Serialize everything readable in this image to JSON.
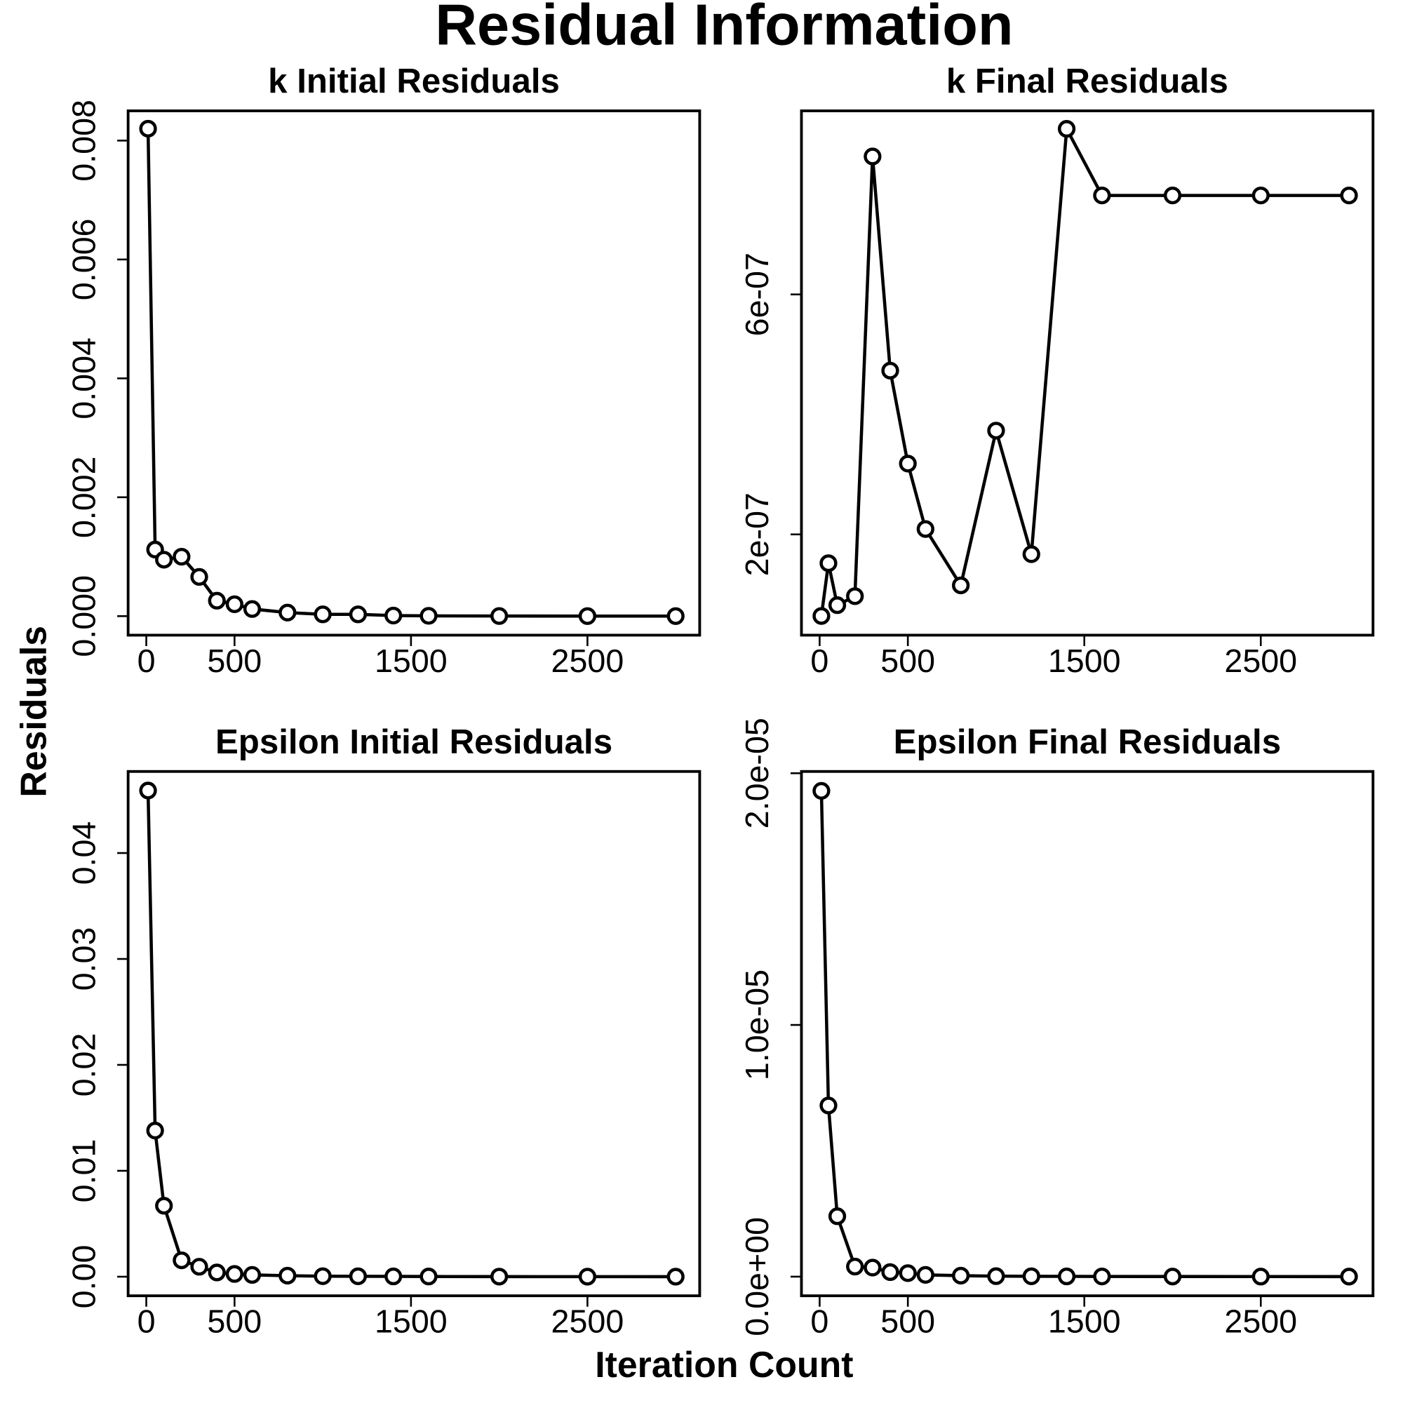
{
  "title": "Residual Information",
  "x_label": "Iteration Count",
  "y_label": "Residuals",
  "chart_data": [
    {
      "type": "line",
      "title": "k Initial Residuals",
      "color": "#000000",
      "marker": "circle",
      "x": [
        10,
        50,
        100,
        200,
        300,
        400,
        500,
        600,
        800,
        1000,
        1200,
        1400,
        1600,
        2000,
        2500,
        3000
      ],
      "values": [
        0.0082,
        0.00112,
        0.00095,
        0.001,
        0.00066,
        0.00026,
        0.0002,
        0.00012,
        6e-05,
        3e-05,
        3e-05,
        1e-05,
        5e-06,
        2e-06,
        1e-06,
        5e-07
      ],
      "xlim": [
        -103,
        3136
      ],
      "ylim": [
        -0.00032,
        0.0085
      ],
      "xticks": [
        0,
        500,
        1500,
        2500
      ],
      "yticks": [
        {
          "value": 0,
          "label": "0.000"
        },
        {
          "value": 0.002,
          "label": "0.002"
        },
        {
          "value": 0.004,
          "label": "0.004"
        },
        {
          "value": 0.006,
          "label": "0.006"
        },
        {
          "value": 0.008,
          "label": "0.008"
        }
      ]
    },
    {
      "type": "line",
      "title": "k Final Residuals",
      "color": "#000000",
      "marker": "circle",
      "x": [
        10,
        50,
        100,
        200,
        300,
        400,
        500,
        600,
        800,
        1000,
        1200,
        1400,
        1600,
        2000,
        2500,
        3000
      ],
      "values": [
        6.4e-08,
        1.52e-07,
        8.2e-08,
        9.7e-08,
        8.3e-07,
        4.73e-07,
        3.18e-07,
        2.09e-07,
        1.15e-07,
        3.73e-07,
        1.67e-07,
        8.76e-07,
        7.65e-07,
        7.65e-07,
        7.65e-07,
        7.65e-07
      ],
      "xlim": [
        -103,
        3136
      ],
      "ylim": [
        3.2e-08,
        9.06e-07
      ],
      "xticks": [
        0,
        500,
        1500,
        2500
      ],
      "yticks": [
        {
          "value": 2e-07,
          "label": "2e-07"
        },
        {
          "value": 6e-07,
          "label": "6e-07"
        }
      ]
    },
    {
      "type": "line",
      "title": "Epsilon Initial Residuals",
      "color": "#000000",
      "marker": "circle",
      "x": [
        10,
        50,
        100,
        200,
        300,
        400,
        500,
        600,
        800,
        1000,
        1200,
        1400,
        1600,
        2000,
        2500,
        3000
      ],
      "values": [
        0.0459,
        0.0138,
        0.0067,
        0.00155,
        0.00094,
        0.0004,
        0.00026,
        0.00017,
        0.0001,
        5e-05,
        4e-05,
        3e-05,
        2e-05,
        1e-05,
        5e-06,
        3e-06
      ],
      "xlim": [
        -103,
        3136
      ],
      "ylim": [
        -0.0018,
        0.0477
      ],
      "xticks": [
        0,
        500,
        1500,
        2500
      ],
      "yticks": [
        {
          "value": 0,
          "label": "0.00"
        },
        {
          "value": 0.01,
          "label": "0.01"
        },
        {
          "value": 0.02,
          "label": "0.02"
        },
        {
          "value": 0.03,
          "label": "0.03"
        },
        {
          "value": 0.04,
          "label": "0.04"
        }
      ]
    },
    {
      "type": "line",
      "title": "Epsilon Final Residuals",
      "color": "#000000",
      "marker": "circle",
      "x": [
        10,
        50,
        100,
        200,
        300,
        400,
        500,
        600,
        800,
        1000,
        1200,
        1400,
        1600,
        2000,
        2500,
        3000
      ],
      "values": [
        1.93e-05,
        6.8e-06,
        2.4e-06,
        4e-07,
        3.6e-07,
        1.8e-07,
        1.4e-07,
        7e-08,
        4e-08,
        2e-08,
        1.5e-08,
        1e-08,
        8e-09,
        5e-09,
        3e-09,
        2e-09
      ],
      "xlim": [
        -103,
        3136
      ],
      "ylim": [
        -7.6e-07,
        2.007e-05
      ],
      "xticks": [
        0,
        500,
        1500,
        2500
      ],
      "yticks": [
        {
          "value": 0,
          "label": "0.0e+00"
        },
        {
          "value": 1e-05,
          "label": "1.0e-05"
        },
        {
          "value": 2e-05,
          "label": "2.0e-05"
        }
      ]
    }
  ]
}
